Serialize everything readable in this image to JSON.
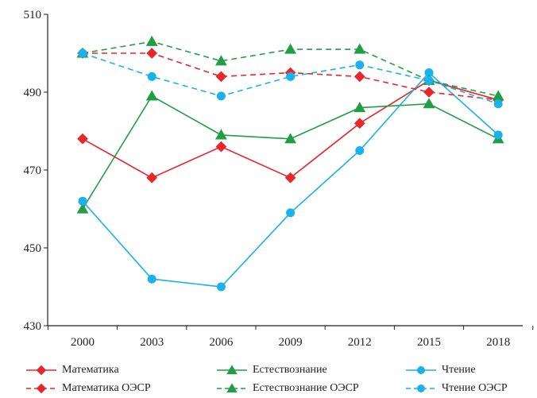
{
  "chart_data": {
    "type": "line",
    "title": "",
    "xlabel": "",
    "ylabel": "",
    "x": [
      "2000",
      "2003",
      "2006",
      "2009",
      "2012",
      "2015",
      "2018"
    ],
    "ylim": [
      430,
      510
    ],
    "yticks": [
      "430",
      "450",
      "470",
      "490",
      "510"
    ],
    "grid": false,
    "legend_position": "bottom",
    "series": [
      {
        "name": "Математика",
        "color": "#e8262b",
        "style": "solid",
        "marker": "diamond",
        "values": [
          478,
          468,
          476,
          468,
          482,
          493,
          488
        ]
      },
      {
        "name": "Математика ОЭСР",
        "color": "#e8262b",
        "style": "dashed",
        "marker": "diamond",
        "values": [
          500,
          500,
          494,
          495,
          494,
          490,
          488
        ]
      },
      {
        "name": "Естествознание",
        "color": "#1f9e46",
        "style": "solid",
        "marker": "triangle",
        "values": [
          460,
          489,
          479,
          478,
          486,
          487,
          478
        ]
      },
      {
        "name": "Естествознание ОЭСР",
        "color": "#1f9e46",
        "style": "dashed",
        "marker": "triangle",
        "values": [
          500,
          503,
          498,
          501,
          501,
          493,
          489
        ]
      },
      {
        "name": "Чтение",
        "color": "#1ab1ec",
        "style": "solid",
        "marker": "circle",
        "values": [
          462,
          442,
          440,
          459,
          475,
          495,
          479
        ]
      },
      {
        "name": "Чтение ОЭСР",
        "color": "#1ab1ec",
        "style": "dashed",
        "marker": "circle",
        "values": [
          500,
          494,
          489,
          494,
          497,
          493,
          487
        ]
      }
    ]
  }
}
